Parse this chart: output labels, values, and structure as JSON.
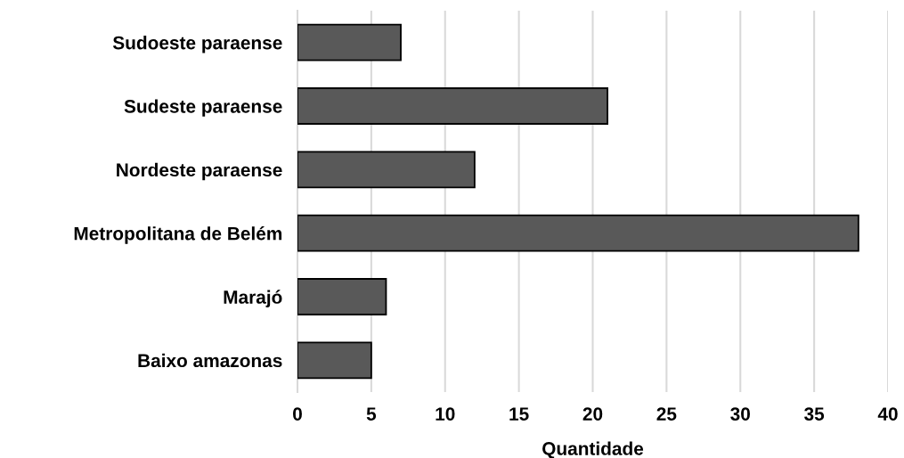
{
  "chart_data": {
    "type": "bar",
    "orientation": "horizontal",
    "xlabel": "Quantidade",
    "categories": [
      "Sudoeste paraense",
      "Sudeste paraense",
      "Nordeste paraense",
      "Metropolitana de Belém",
      "Marajó",
      "Baixo amazonas"
    ],
    "values": [
      7,
      21,
      12,
      38,
      6,
      5
    ],
    "color": "#595959",
    "xlim": [
      0,
      40
    ],
    "xticks": [
      0,
      5,
      10,
      15,
      20,
      25,
      30,
      35,
      40
    ],
    "grid": "x"
  }
}
